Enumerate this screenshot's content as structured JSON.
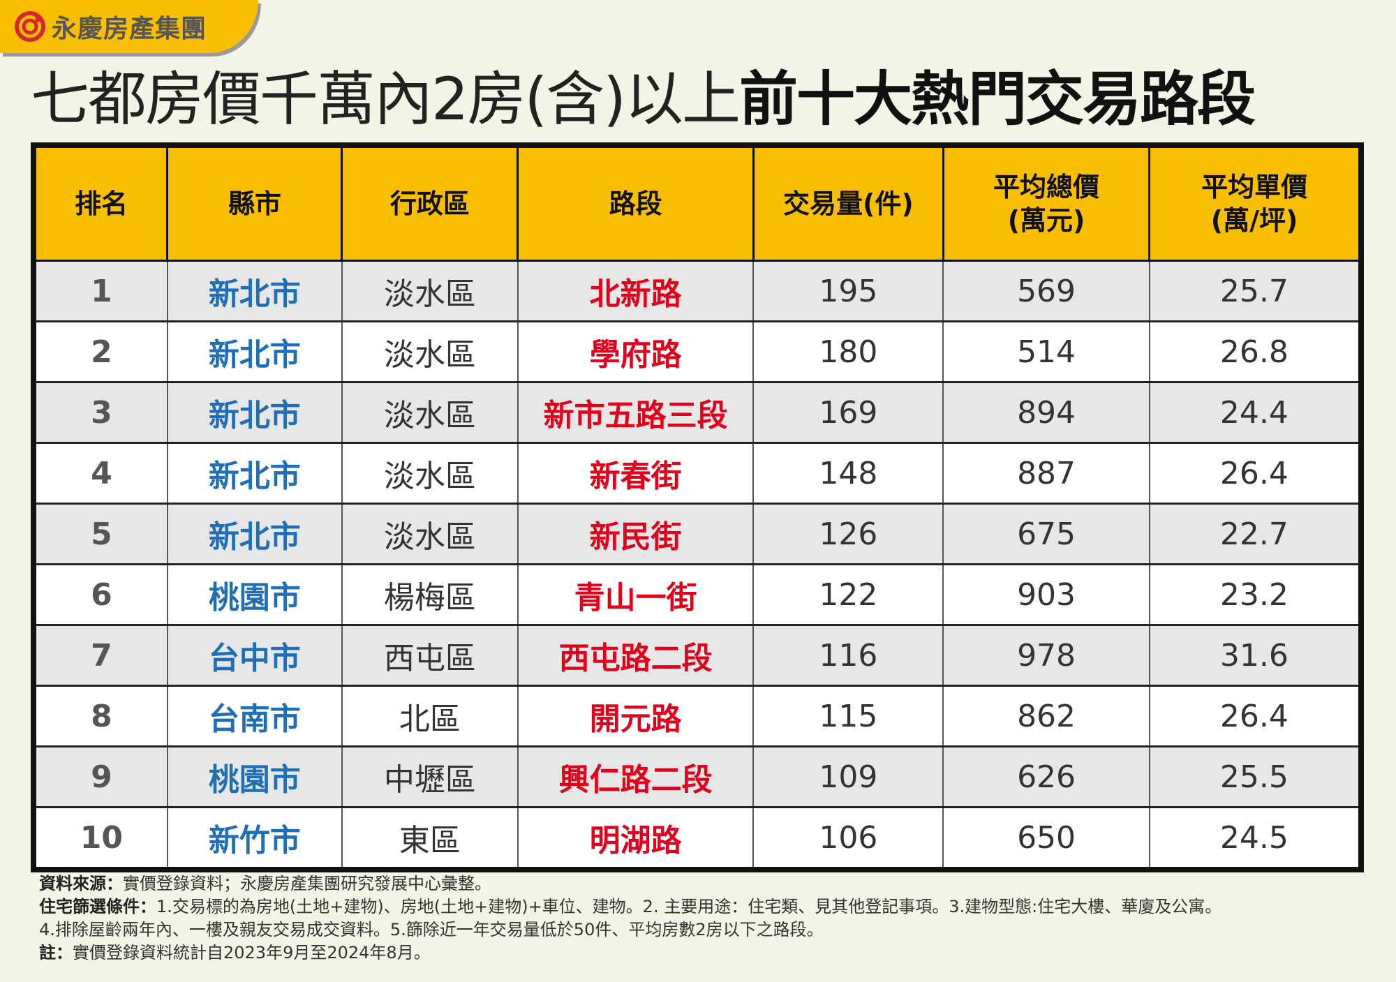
{
  "brand": "永慶房產集團",
  "title": {
    "light": "七都房價千萬內2房(含)以上",
    "bold": "前十大熱門交易路段"
  },
  "colors": {
    "header": "#F8BE00",
    "city": "#1E6EB8",
    "road": "#E2001A",
    "background": "#F3F3E6"
  },
  "columns": [
    "排名",
    "縣市",
    "行政區",
    "路段",
    "交易量(件)",
    "平均總價\n(萬元)",
    "平均單價\n(萬/坪)"
  ],
  "rows": [
    {
      "rank": "1",
      "city": "新北市",
      "district": "淡水區",
      "road": "北新路",
      "volume": "195",
      "avg_total": "569",
      "avg_unit": "25.7"
    },
    {
      "rank": "2",
      "city": "新北市",
      "district": "淡水區",
      "road": "學府路",
      "volume": "180",
      "avg_total": "514",
      "avg_unit": "26.8"
    },
    {
      "rank": "3",
      "city": "新北市",
      "district": "淡水區",
      "road": "新市五路三段",
      "volume": "169",
      "avg_total": "894",
      "avg_unit": "24.4"
    },
    {
      "rank": "4",
      "city": "新北市",
      "district": "淡水區",
      "road": "新春街",
      "volume": "148",
      "avg_total": "887",
      "avg_unit": "26.4"
    },
    {
      "rank": "5",
      "city": "新北市",
      "district": "淡水區",
      "road": "新民街",
      "volume": "126",
      "avg_total": "675",
      "avg_unit": "22.7"
    },
    {
      "rank": "6",
      "city": "桃園市",
      "district": "楊梅區",
      "road": "青山一街",
      "volume": "122",
      "avg_total": "903",
      "avg_unit": "23.2"
    },
    {
      "rank": "7",
      "city": "台中市",
      "district": "西屯區",
      "road": "西屯路二段",
      "volume": "116",
      "avg_total": "978",
      "avg_unit": "31.6"
    },
    {
      "rank": "8",
      "city": "台南市",
      "district": "北區",
      "road": "開元路",
      "volume": "115",
      "avg_total": "862",
      "avg_unit": "26.4"
    },
    {
      "rank": "9",
      "city": "桃園市",
      "district": "中壢區",
      "road": "興仁路二段",
      "volume": "109",
      "avg_total": "626",
      "avg_unit": "25.5"
    },
    {
      "rank": "10",
      "city": "新竹市",
      "district": "東區",
      "road": "明湖路",
      "volume": "106",
      "avg_total": "650",
      "avg_unit": "24.5"
    }
  ],
  "footer": {
    "source_label": "資料來源：",
    "source": "實價登錄資料；永慶房產集團研究發展中心彙整。",
    "criteria_label": "住宅篩選條件：",
    "criteria": "1.交易標的為房地(土地+建物)、房地(土地+建物)+車位、建物。2. 主要用途：住宅類、見其他登記事項。3.建物型態:住宅大樓、華廈及公寓。",
    "criteria2": "4.排除屋齡兩年內、一樓及親友交易成交資料。5.篩除近一年交易量低於50件、平均房數2房以下之路段。",
    "note_label": "註：",
    "note": "實價登錄資料統計自2023年9月至2024年8月。"
  }
}
